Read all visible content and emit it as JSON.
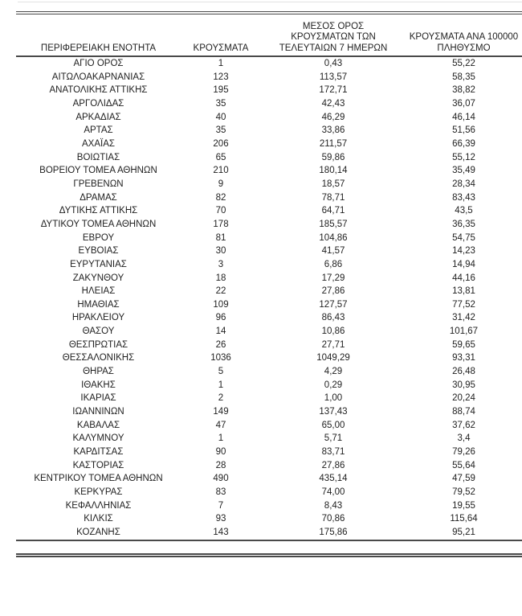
{
  "style": {
    "ink": "#1f1f1f",
    "rule_dark": "#4a4a4a",
    "rule_light": "#e2e2e2",
    "page_background": "#ffffff"
  },
  "table": {
    "headers": [
      "ΠΕΡΙΦΕΡΕΙΑΚΗ ΕΝΟΤΗΤΑ",
      "ΚΡΟΥΣΜΑΤΑ",
      "ΜΕΣΟΣ ΟΡΟΣ\nΚΡΟΥΣΜΑΤΩΝ ΤΩΝ\nΤΕΛΕΥΤΑΙΩΝ 7 ΗΜΕΡΩΝ",
      "ΚΡΟΥΣΜΑΤΑ ΑΝΑ 100000\nΠΛΗΘΥΣΜΟ"
    ],
    "row_keys": [
      "region",
      "cases",
      "avg_7day",
      "per_100k"
    ],
    "rows": [
      {
        "region": "ΑΓΙΟ ΟΡΟΣ",
        "cases": "1",
        "avg_7day": "0,43",
        "per_100k": "55,22"
      },
      {
        "region": "ΑΙΤΩΛΟΑΚΑΡΝΑΝΙΑΣ",
        "cases": "123",
        "avg_7day": "113,57",
        "per_100k": "58,35"
      },
      {
        "region": "ΑΝΑΤΟΛΙΚΗΣ ΑΤΤΙΚΗΣ",
        "cases": "195",
        "avg_7day": "172,71",
        "per_100k": "38,82"
      },
      {
        "region": "ΑΡΓΟΛΙΔΑΣ",
        "cases": "35",
        "avg_7day": "42,43",
        "per_100k": "36,07"
      },
      {
        "region": "ΑΡΚΑΔΙΑΣ",
        "cases": "40",
        "avg_7day": "46,29",
        "per_100k": "46,14"
      },
      {
        "region": "ΑΡΤΑΣ",
        "cases": "35",
        "avg_7day": "33,86",
        "per_100k": "51,56"
      },
      {
        "region": "ΑΧΑΪΑΣ",
        "cases": "206",
        "avg_7day": "211,57",
        "per_100k": "66,39"
      },
      {
        "region": "ΒΟΙΩΤΙΑΣ",
        "cases": "65",
        "avg_7day": "59,86",
        "per_100k": "55,12"
      },
      {
        "region": "ΒΟΡΕΙΟΥ ΤΟΜΕΑ ΑΘΗΝΩΝ",
        "cases": "210",
        "avg_7day": "180,14",
        "per_100k": "35,49"
      },
      {
        "region": "ΓΡΕΒΕΝΩΝ",
        "cases": "9",
        "avg_7day": "18,57",
        "per_100k": "28,34"
      },
      {
        "region": "ΔΡΑΜΑΣ",
        "cases": "82",
        "avg_7day": "78,71",
        "per_100k": "83,43"
      },
      {
        "region": "ΔΥΤΙΚΗΣ ΑΤΤΙΚΗΣ",
        "cases": "70",
        "avg_7day": "64,71",
        "per_100k": "43,5"
      },
      {
        "region": "ΔΥΤΙΚΟΥ ΤΟΜΕΑ ΑΘΗΝΩΝ",
        "cases": "178",
        "avg_7day": "185,57",
        "per_100k": "36,35"
      },
      {
        "region": "ΕΒΡΟΥ",
        "cases": "81",
        "avg_7day": "104,86",
        "per_100k": "54,75"
      },
      {
        "region": "ΕΥΒΟΙΑΣ",
        "cases": "30",
        "avg_7day": "41,57",
        "per_100k": "14,23"
      },
      {
        "region": "ΕΥΡΥΤΑΝΙΑΣ",
        "cases": "3",
        "avg_7day": "6,86",
        "per_100k": "14,94"
      },
      {
        "region": "ΖΑΚΥΝΘΟΥ",
        "cases": "18",
        "avg_7day": "17,29",
        "per_100k": "44,16"
      },
      {
        "region": "ΗΛΕΙΑΣ",
        "cases": "22",
        "avg_7day": "27,86",
        "per_100k": "13,81"
      },
      {
        "region": "ΗΜΑΘΙΑΣ",
        "cases": "109",
        "avg_7day": "127,57",
        "per_100k": "77,52"
      },
      {
        "region": "ΗΡΑΚΛΕΙΟΥ",
        "cases": "96",
        "avg_7day": "86,43",
        "per_100k": "31,42"
      },
      {
        "region": "ΘΑΣΟΥ",
        "cases": "14",
        "avg_7day": "10,86",
        "per_100k": "101,67"
      },
      {
        "region": "ΘΕΣΠΡΩΤΙΑΣ",
        "cases": "26",
        "avg_7day": "27,71",
        "per_100k": "59,65"
      },
      {
        "region": "ΘΕΣΣΑΛΟΝΙΚΗΣ",
        "cases": "1036",
        "avg_7day": "1049,29",
        "per_100k": "93,31"
      },
      {
        "region": "ΘΗΡΑΣ",
        "cases": "5",
        "avg_7day": "4,29",
        "per_100k": "26,48"
      },
      {
        "region": "ΙΘΑΚΗΣ",
        "cases": "1",
        "avg_7day": "0,29",
        "per_100k": "30,95"
      },
      {
        "region": "ΙΚΑΡΙΑΣ",
        "cases": "2",
        "avg_7day": "1,00",
        "per_100k": "20,24"
      },
      {
        "region": "ΙΩΑΝΝΙΝΩΝ",
        "cases": "149",
        "avg_7day": "137,43",
        "per_100k": "88,74"
      },
      {
        "region": "ΚΑΒΑΛΑΣ",
        "cases": "47",
        "avg_7day": "65,00",
        "per_100k": "37,62"
      },
      {
        "region": "ΚΑΛΥΜΝΟΥ",
        "cases": "1",
        "avg_7day": "5,71",
        "per_100k": "3,4"
      },
      {
        "region": "ΚΑΡΔΙΤΣΑΣ",
        "cases": "90",
        "avg_7day": "83,71",
        "per_100k": "79,26"
      },
      {
        "region": "ΚΑΣΤΟΡΙΑΣ",
        "cases": "28",
        "avg_7day": "27,86",
        "per_100k": "55,64"
      },
      {
        "region": "ΚΕΝΤΡΙΚΟΥ ΤΟΜΕΑ ΑΘΗΝΩΝ",
        "cases": "490",
        "avg_7day": "435,14",
        "per_100k": "47,59"
      },
      {
        "region": "ΚΕΡΚΥΡΑΣ",
        "cases": "83",
        "avg_7day": "74,00",
        "per_100k": "79,52"
      },
      {
        "region": "ΚΕΦΑΛΛΗΝΙΑΣ",
        "cases": "7",
        "avg_7day": "8,43",
        "per_100k": "19,55"
      },
      {
        "region": "ΚΙΛΚΙΣ",
        "cases": "93",
        "avg_7day": "70,86",
        "per_100k": "115,64"
      },
      {
        "region": "ΚΟΖΑΝΗΣ",
        "cases": "143",
        "avg_7day": "175,86",
        "per_100k": "95,21"
      }
    ]
  }
}
